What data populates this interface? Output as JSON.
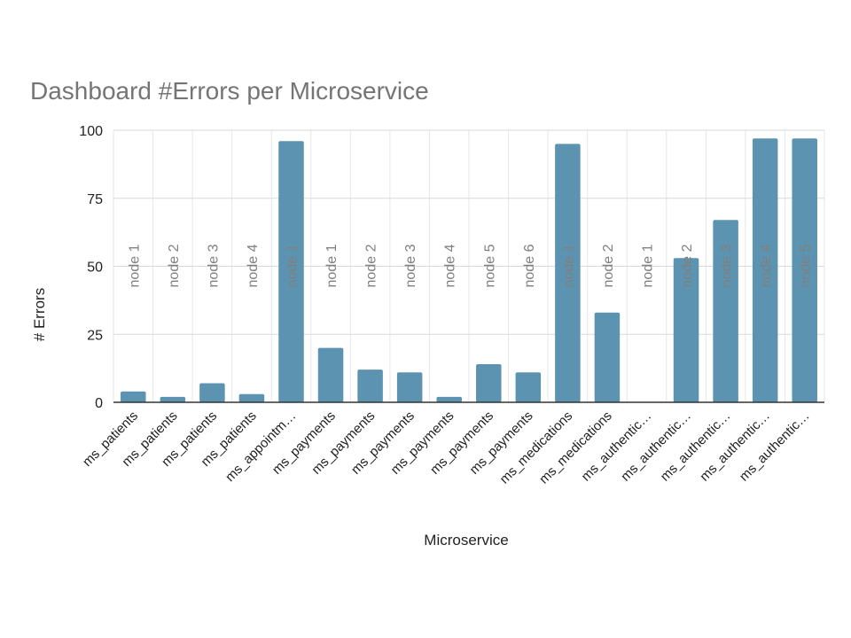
{
  "chart_data": {
    "type": "bar",
    "title": "Dashboard #Errors per Microservice",
    "xlabel": "Microservice",
    "ylabel": "# Errors",
    "ylim": [
      0,
      100
    ],
    "yticks": [
      "0",
      "25",
      "50",
      "75",
      "100"
    ],
    "grid": true,
    "legend": "none",
    "bar_color": "#5b93b1",
    "categories": [
      "ms_patients",
      "ms_patients",
      "ms_patients",
      "ms_patients",
      "ms_appointm…",
      "ms_payments",
      "ms_payments",
      "ms_payments",
      "ms_payments",
      "ms_payments",
      "ms_payments",
      "ms_medications",
      "ms_medications",
      "ms_authentic…",
      "ms_authentic…",
      "ms_authentic…",
      "ms_authentic…",
      "ms_authentic…"
    ],
    "data_labels": [
      "node 1",
      "node 2",
      "node 3",
      "node 4",
      "node 1",
      "node 1",
      "node 2",
      "node 3",
      "node 4",
      "node 5",
      "node 6",
      "node 1",
      "node 2",
      "node 1",
      "node 2",
      "node 3",
      "node 4",
      "node 5"
    ],
    "values": [
      4,
      2,
      7,
      3,
      96,
      20,
      12,
      11,
      2,
      14,
      11,
      95,
      33,
      0,
      53,
      67,
      97,
      97
    ]
  }
}
